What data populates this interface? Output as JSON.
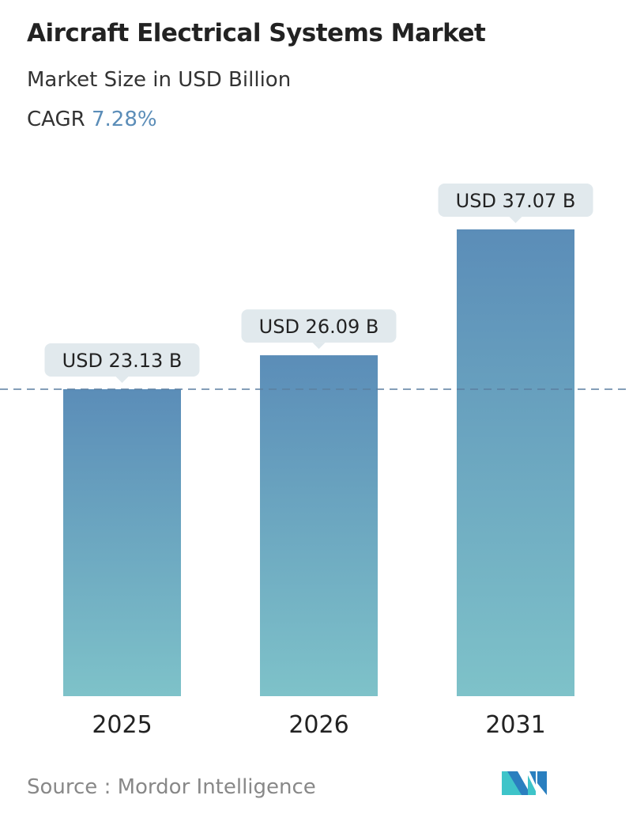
{
  "chart_data": {
    "type": "bar",
    "title": "Aircraft Electrical Systems Market",
    "subtitle": "Market Size in USD Billion",
    "cagr_label": "CAGR",
    "cagr_value": "7.28%",
    "categories": [
      "2025",
      "2026",
      "2031"
    ],
    "values": [
      23.13,
      26.09,
      37.07
    ],
    "data_labels": [
      "USD 23.13 B",
      "USD 26.09 B",
      "USD 37.07 B"
    ],
    "reference_line": "dashed line at 2025 value",
    "colors": {
      "bar_top": "#5b8db8",
      "bar_bottom": "#7ec2c9",
      "label_bg": "#e1e9ed",
      "accent": "#5b8db8"
    }
  },
  "source": "Source :  Mordor Intelligence"
}
